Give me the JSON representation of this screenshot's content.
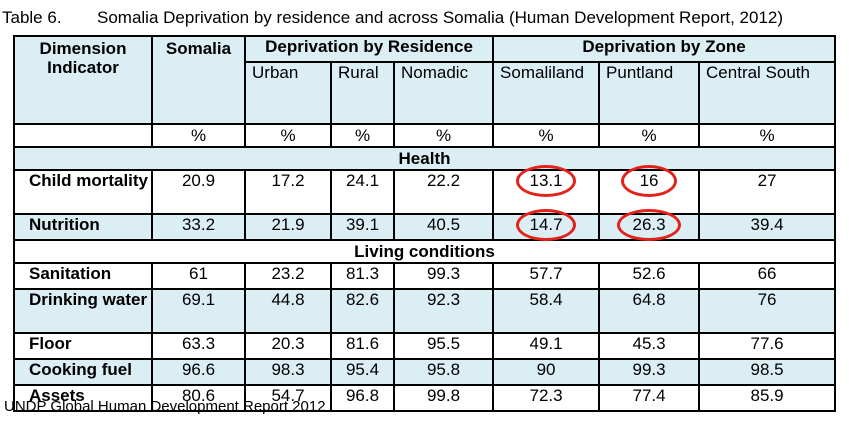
{
  "caption": {
    "number": "Table 6.",
    "title": "Somalia Deprivation by residence and across Somalia (Human Development Report, 2012)"
  },
  "headers": {
    "dimension": "Dimension Indicator",
    "somalia": "Somalia",
    "residence_group": "Deprivation by Residence",
    "zone_group": "Deprivation by Zone",
    "urban": "Urban",
    "rural": "Rural",
    "nomadic": "Nomadic",
    "somaliland": "Somaliland",
    "puntland": "Puntland",
    "central_south": "Central South",
    "unit": "%"
  },
  "sections": {
    "health": "Health",
    "living": "Living conditions"
  },
  "rows": [
    {
      "label": "Child mortality",
      "values": [
        "20.9",
        "17.2",
        "24.1",
        "22.2",
        "13.1",
        "16",
        "27"
      ]
    },
    {
      "label": "Nutrition",
      "values": [
        "33.2",
        "21.9",
        "39.1",
        "40.5",
        "14.7",
        "26.3",
        "39.4"
      ]
    },
    {
      "label": "Sanitation",
      "values": [
        "61",
        "23.2",
        "81.3",
        "99.3",
        "57.7",
        "52.6",
        "66"
      ]
    },
    {
      "label": "Drinking water",
      "values": [
        "69.1",
        "44.8",
        "82.6",
        "92.3",
        "58.4",
        "64.8",
        "76"
      ]
    },
    {
      "label": "Floor",
      "values": [
        "63.3",
        "20.3",
        "81.6",
        "95.5",
        "49.1",
        "45.3",
        "77.6"
      ]
    },
    {
      "label": "Cooking fuel",
      "values": [
        "96.6",
        "98.3",
        "95.4",
        "95.8",
        "90",
        "99.3",
        "98.5"
      ]
    },
    {
      "label": "Assets",
      "values": [
        "80.6",
        "54.7",
        "96.8",
        "99.8",
        "72.3",
        "77.4",
        "85.9"
      ]
    }
  ],
  "highlight_color": "#e3231b",
  "row_tint": "#dbeef4",
  "source": "UNDP Global Human Development Report 2012"
}
